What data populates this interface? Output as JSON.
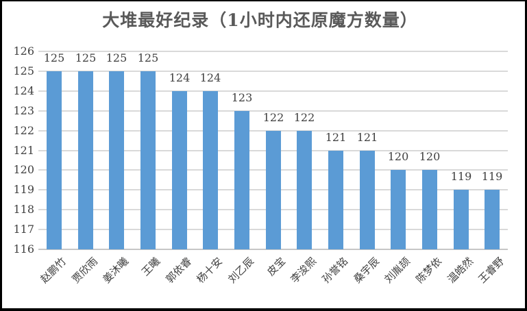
{
  "window": {
    "background": "#ffffff",
    "border_color": "#000000"
  },
  "chart_data": {
    "type": "bar",
    "title": "大堆最好纪录（1小时内还原魔方数量）",
    "categories": [
      "赵鹏竹",
      "贾欣雨",
      "姜沐曦",
      "王曦",
      "郭依睿",
      "杨十安",
      "刘乙辰",
      "皮宝",
      "李浚熙",
      "孙誉铭",
      "桑宇辰",
      "刘胤颉",
      "陈梦依",
      "温皓然",
      "王睿野"
    ],
    "values": [
      125,
      125,
      125,
      125,
      124,
      124,
      123,
      122,
      122,
      121,
      121,
      120,
      120,
      119,
      119
    ],
    "xlabel": "",
    "ylabel": "",
    "ylim": [
      116,
      126
    ],
    "ytick_step": 1,
    "yticks": [
      116,
      117,
      118,
      119,
      120,
      121,
      122,
      123,
      124,
      125,
      126
    ],
    "grid": true,
    "data_labels": true,
    "legend": "none",
    "bar_color": "#5b9bd5",
    "gridline_color": "#d9d9d9",
    "axis_line_color": "#c6c6c6",
    "label_color": "#404040",
    "title_color": "#595959"
  }
}
